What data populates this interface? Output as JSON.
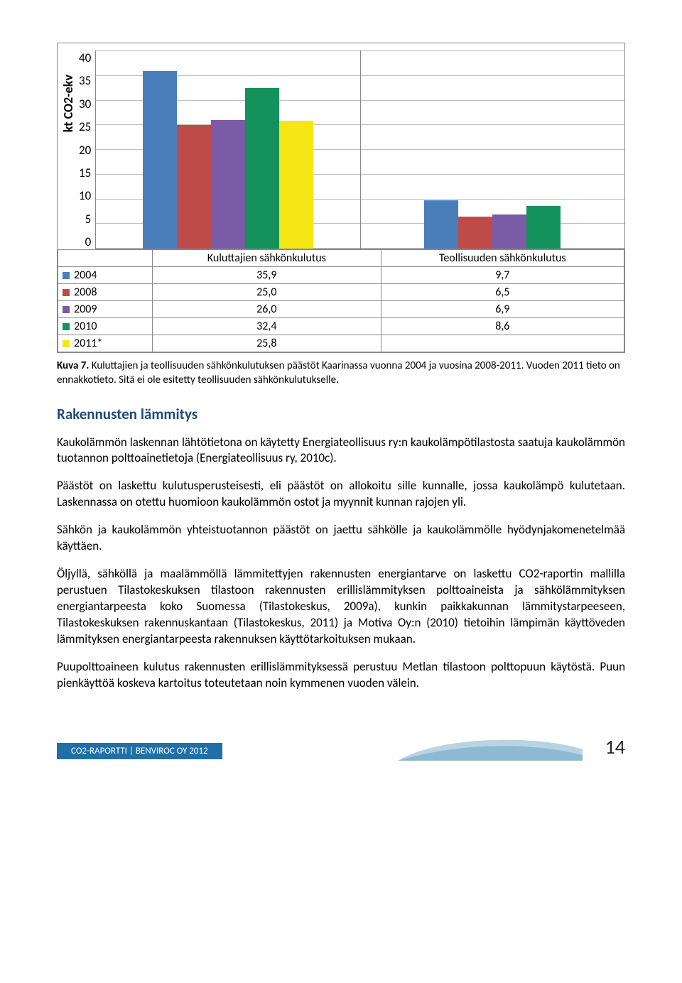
{
  "chart": {
    "type": "bar",
    "ylabel": "kt CO2-ekv",
    "y_ticks": [
      "40",
      "35",
      "30",
      "25",
      "20",
      "15",
      "10",
      "5",
      "0"
    ],
    "y_max": 40,
    "categories": [
      "Kuluttajien sähkönkulutus",
      "Teollisuuden sähkönkulutus"
    ],
    "series": [
      {
        "label": "2004",
        "color": "#4a7ebb",
        "values": [
          35.9,
          9.7
        ],
        "display": [
          "35,9",
          "9,7"
        ]
      },
      {
        "label": "2008",
        "color": "#be4b48",
        "values": [
          25.0,
          6.5
        ],
        "display": [
          "25,0",
          "6,5"
        ]
      },
      {
        "label": "2009",
        "color": "#7a5ba6",
        "values": [
          26.0,
          6.9
        ],
        "display": [
          "26,0",
          "6,9"
        ]
      },
      {
        "label": "2010",
        "color": "#14925c",
        "values": [
          32.4,
          8.6
        ],
        "display": [
          "32,4",
          "8,6"
        ]
      },
      {
        "label": "2011*",
        "color": "#f7e615",
        "values": [
          25.8,
          null
        ],
        "display": [
          "25,8",
          ""
        ]
      }
    ],
    "grid_color": "#bfbfbf",
    "border_color": "#888888",
    "background_color": "#ffffff"
  },
  "caption": "Kuva 7. Kuluttajien ja teollisuuden sähkönkulutuksen päästöt Kaarinassa  vuonna 2004 ja vuosina 2008-2011. Vuoden 2011 tieto on ennakkotieto. Sitä ei ole esitetty teollisuuden sähkönkulutukselle.",
  "heading": "Rakennusten lämmitys",
  "paragraphs": [
    "Kaukolämmön laskennan lähtötietona on käytetty Energiateollisuus ry:n kaukolämpötilastosta saatuja kaukolämmön tuotannon polttoainetietoja (Energiateollisuus ry, 2010c).",
    "Päästöt on laskettu kulutusperusteisesti, eli päästöt on allokoitu sille kunnalle, jossa kaukolämpö kulutetaan. Laskennassa on otettu huomioon kaukolämmön ostot ja myynnit kunnan rajojen yli.",
    "Sähkön ja kaukolämmön yhteistuotannon päästöt on jaettu sähkölle ja kaukolämmölle hyödynjakomenetelmää käyttäen.",
    "Öljyllä, sähköllä ja maalämmöllä lämmitettyjen rakennusten energiantarve on laskettu CO2-raportin mallilla perustuen Tilastokeskuksen tilastoon rakennusten erillislämmityksen polttoaineista ja sähkölämmityksen energiantarpeesta koko Suomessa (Tilastokeskus, 2009a), kunkin paikkakunnan lämmitystarpeeseen, Tilastokeskuksen rakennuskantaan (Tilastokeskus, 2011) ja Motiva Oy:n (2010) tietoihin lämpimän käyttöveden lämmityksen energiantarpeesta rakennuksen käyttötarkoituksen mukaan.",
    "Puupolttoaineen kulutus rakennusten erillislämmityksessä perustuu Metlan tilastoon polttopuun käytöstä. Puun pienkäyttöä koskeva kartoitus toteutetaan noin kymmenen vuoden välein."
  ],
  "footer": {
    "text": "CO2-RAPORTTI | BENVIROC OY 2012",
    "page_number": "14",
    "badge_bg": "#1f6fa8",
    "swoosh_fill": "#b8d4e3",
    "swoosh_accent": "#6fa8c7"
  }
}
